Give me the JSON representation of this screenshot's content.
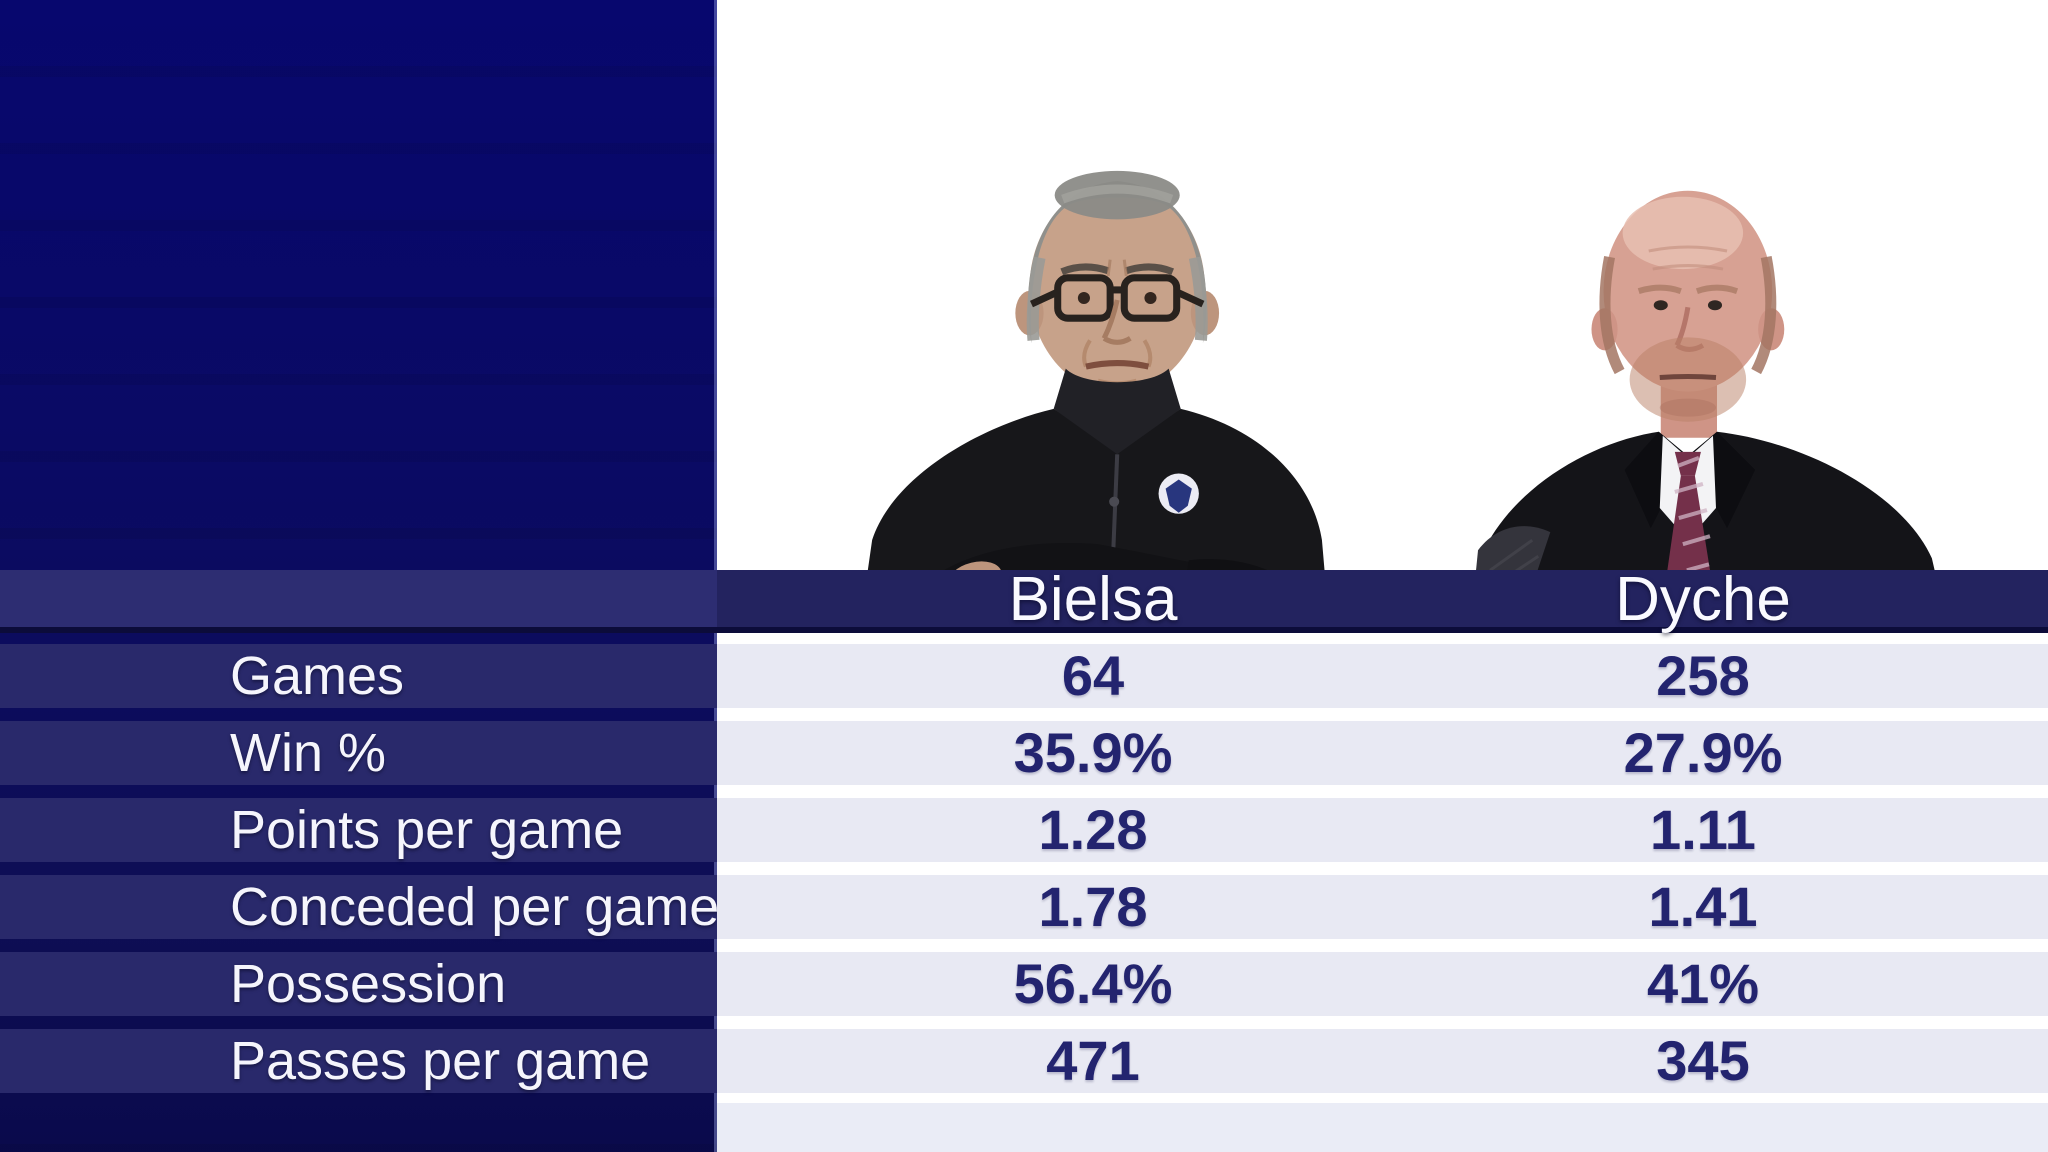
{
  "table": {
    "columns": [
      "Bielsa",
      "Dyche"
    ],
    "rows": [
      {
        "label": "Games",
        "bielsa": "64",
        "dyche": "258"
      },
      {
        "label": "Win %",
        "bielsa": "35.9%",
        "dyche": "27.9%"
      },
      {
        "label": "Points per game",
        "bielsa": "1.28",
        "dyche": "1.11"
      },
      {
        "label": "Conceded per game",
        "bielsa": "1.78",
        "dyche": "1.41"
      },
      {
        "label": "Possession",
        "bielsa": "56.4%",
        "dyche": "41%"
      },
      {
        "label": "Passes per game",
        "bielsa": "471",
        "dyche": "345"
      }
    ]
  },
  "images": {
    "left": "bielsa-portrait",
    "right": "dyche-portrait"
  },
  "colors": {
    "panel_navy": "#0a0a64",
    "row_band_navy": "#29296b",
    "header_navy": "#23235f",
    "header_navy_left": "#2d2d72",
    "header_separator": "#0c0c3a",
    "row_band_light": "#e8e9f3",
    "bottom_strip": "#eaecf6",
    "value_text": "#23246f",
    "label_text": "#f5f5fc",
    "background_white": "#ffffff"
  },
  "chart_data": {
    "type": "table",
    "categories": [
      "Games",
      "Win %",
      "Points per game",
      "Conceded per game",
      "Possession",
      "Passes per game"
    ],
    "series": [
      {
        "name": "Bielsa",
        "values": [
          "64",
          "35.9%",
          "1.28",
          "1.78",
          "56.4%",
          "471"
        ]
      },
      {
        "name": "Dyche",
        "values": [
          "258",
          "27.9%",
          "1.11",
          "1.41",
          "41%",
          "345"
        ]
      }
    ],
    "legend_position": "top",
    "grid": false
  }
}
